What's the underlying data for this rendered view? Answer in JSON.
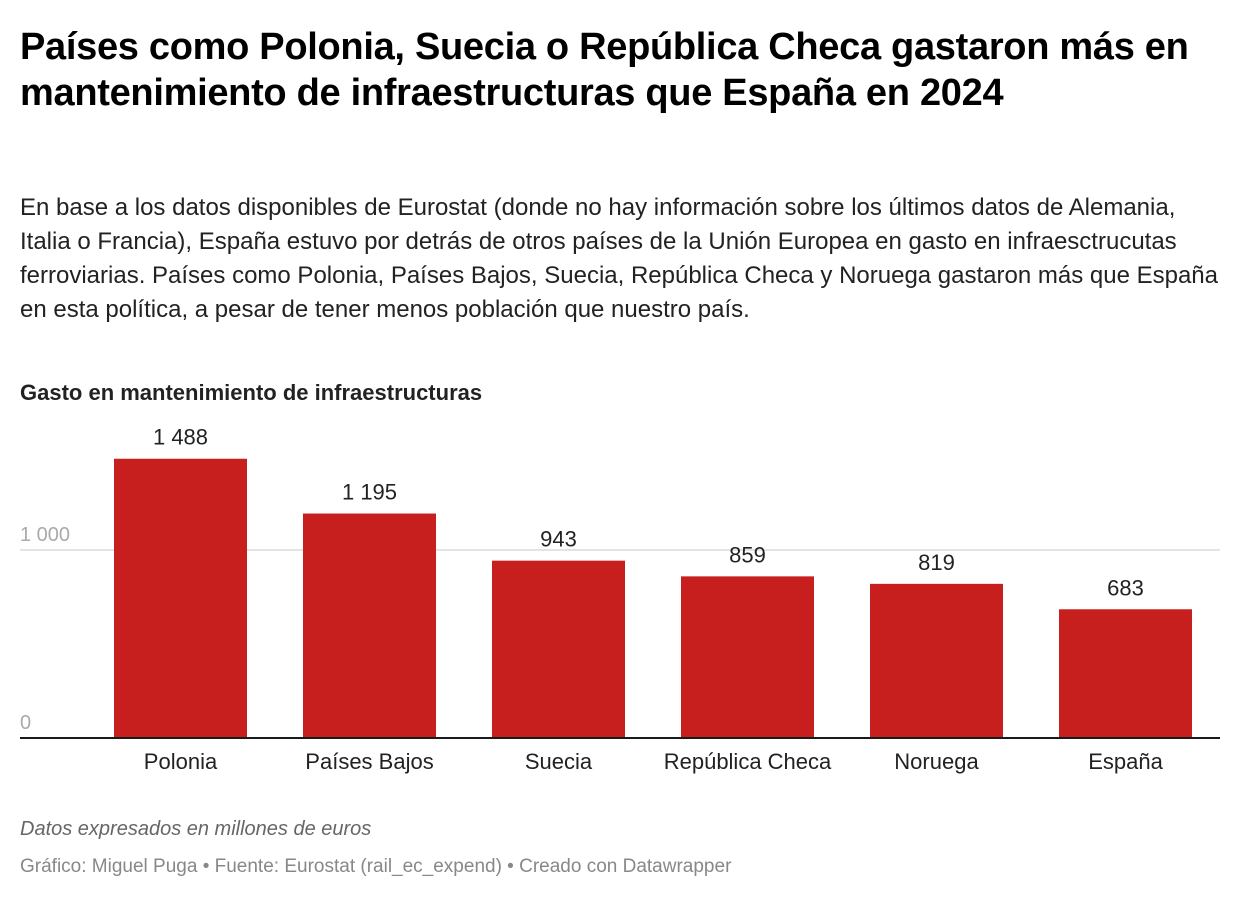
{
  "header": {
    "title": "Países como Polonia, Suecia o República Checa gastaron más en mantenimiento de infraestructuras que España en 2024",
    "description": "En base a los datos disponibles de Eurostat (donde no hay información sobre los últimos datos de Alemania, Italia o Francia), España estuvo por detrás de otros países de la Unión Europea en gasto en infraesctrucutas ferroviarias. Países como Polonia, Países Bajos, Suecia, República Checa y Noruega gastaron más que España en esta política, a pesar de tener menos población que nuestro país."
  },
  "chart_data": {
    "type": "bar",
    "title": "Gasto en mantenimiento de infraestructuras",
    "categories": [
      "Polonia",
      "Países Bajos",
      "Suecia",
      "República Checa",
      "Noruega",
      "España"
    ],
    "values": [
      1488,
      1195,
      943,
      859,
      819,
      683
    ],
    "value_labels": [
      "1 488",
      "1 195",
      "943",
      "859",
      "819",
      "683"
    ],
    "xlabel": "",
    "ylabel": "",
    "ylim": [
      0,
      1600
    ],
    "yticks": [
      0,
      1000
    ],
    "ytick_labels": [
      "0",
      "1 000"
    ],
    "grid": true,
    "bar_color": "#c71e1e"
  },
  "footer": {
    "notes": "Datos expresados en millones de euros",
    "byline": "Gráfico: Miguel Puga • Fuente: Eurostat (rail_ec_expend)  • Creado con Datawrapper"
  }
}
